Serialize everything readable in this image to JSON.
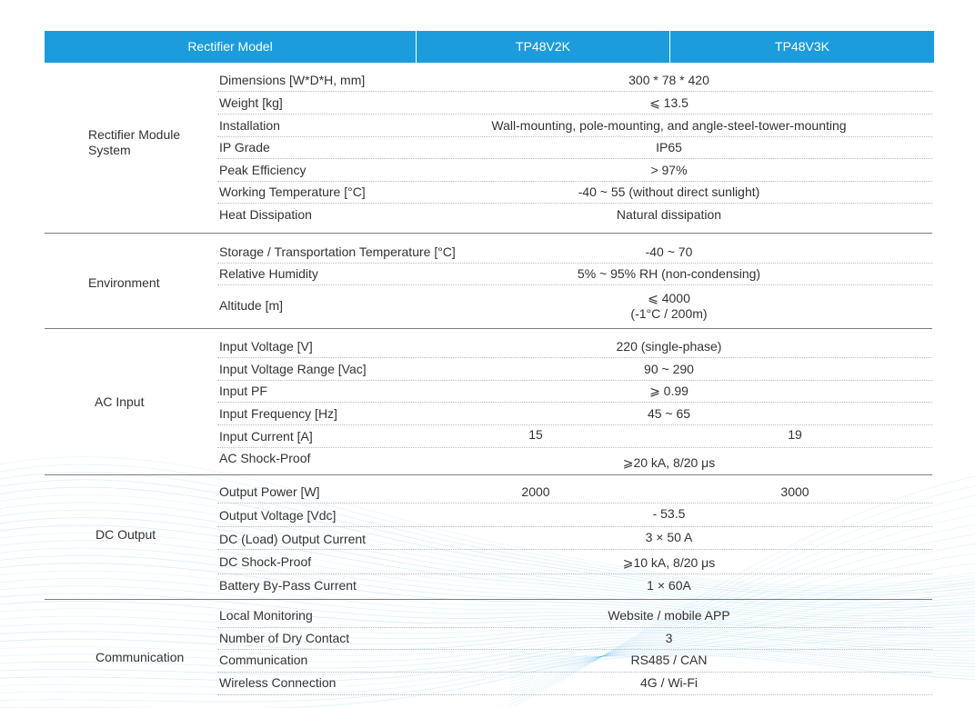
{
  "header": {
    "col_model": "Rectifier Model",
    "col_a": "TP48V2K",
    "col_b": "TP48V3K"
  },
  "sections": {
    "system": {
      "label_line1": "Rectifier Module",
      "label_line2": "System",
      "rows": [
        {
          "param": "Dimensions [W*D*H, mm]",
          "value": "300 * 78 * 420"
        },
        {
          "param": "Weight [kg]",
          "value": "⩽ 13.5"
        },
        {
          "param": "Installation",
          "value": "Wall-mounting, pole-mounting, and angle-steel-tower-mounting"
        },
        {
          "param": "IP Grade",
          "value": "IP65"
        },
        {
          "param": "Peak Efficiency",
          "value": "> 97%"
        },
        {
          "param": "Working Temperature [°C]",
          "value": "-40 ~ 55 (without direct sunlight)"
        },
        {
          "param": "Heat Dissipation",
          "value": "Natural dissipation"
        }
      ]
    },
    "environment": {
      "label": "Environment",
      "rows": [
        {
          "param": "Storage / Transportation Temperature [°C]",
          "value": "-40 ~ 70"
        },
        {
          "param": "Relative Humidity",
          "value": "5% ~ 95% RH (non-condensing)"
        },
        {
          "param": "Altitude [m]",
          "value_line1": "⩽ 4000",
          "value_line2": "(-1°C / 200m)"
        }
      ]
    },
    "ac_input": {
      "label": "AC Input",
      "rows": [
        {
          "param": "Input Voltage [V]",
          "value": "220 (single-phase)"
        },
        {
          "param": "Input Voltage Range [Vac]",
          "value": "90 ~ 290"
        },
        {
          "param": "Input PF",
          "value": "⩾ 0.99"
        },
        {
          "param": "Input Frequency [Hz]",
          "value": "45 ~ 65"
        },
        {
          "param": "Input Current [A]",
          "value_a": "15",
          "value_b": "19"
        },
        {
          "param": "AC Shock-Proof",
          "value": "⩾20 kA, 8/20 μs"
        }
      ]
    },
    "dc_output": {
      "label": "DC Output",
      "rows": [
        {
          "param": "Output Power [W]",
          "value_a": "2000",
          "value_b": "3000"
        },
        {
          "param": "Output Voltage [Vdc]",
          "value": "- 53.5"
        },
        {
          "param": "DC (Load) Output Current",
          "value": "3 × 50 A"
        },
        {
          "param": "DC Shock-Proof",
          "value": "⩾10 kA, 8/20 μs"
        },
        {
          "param": "Battery By-Pass Current",
          "value": "1 × 60A"
        }
      ]
    },
    "communication": {
      "label": "Communication",
      "rows": [
        {
          "param": "Local Monitoring",
          "value": "Website / mobile APP"
        },
        {
          "param": "Number of Dry Contact",
          "value": "3"
        },
        {
          "param": "Communication",
          "value": "RS485 / CAN"
        },
        {
          "param": "Wireless Connection",
          "value": "4G / Wi-Fi"
        }
      ]
    }
  },
  "colors": {
    "header_bg": "#1c9cdc",
    "header_text": "#ffffff",
    "text": "#333333",
    "separator": "#7d7d7d",
    "dotted": "#b9b9b9",
    "wave": "#3aa8e0"
  }
}
